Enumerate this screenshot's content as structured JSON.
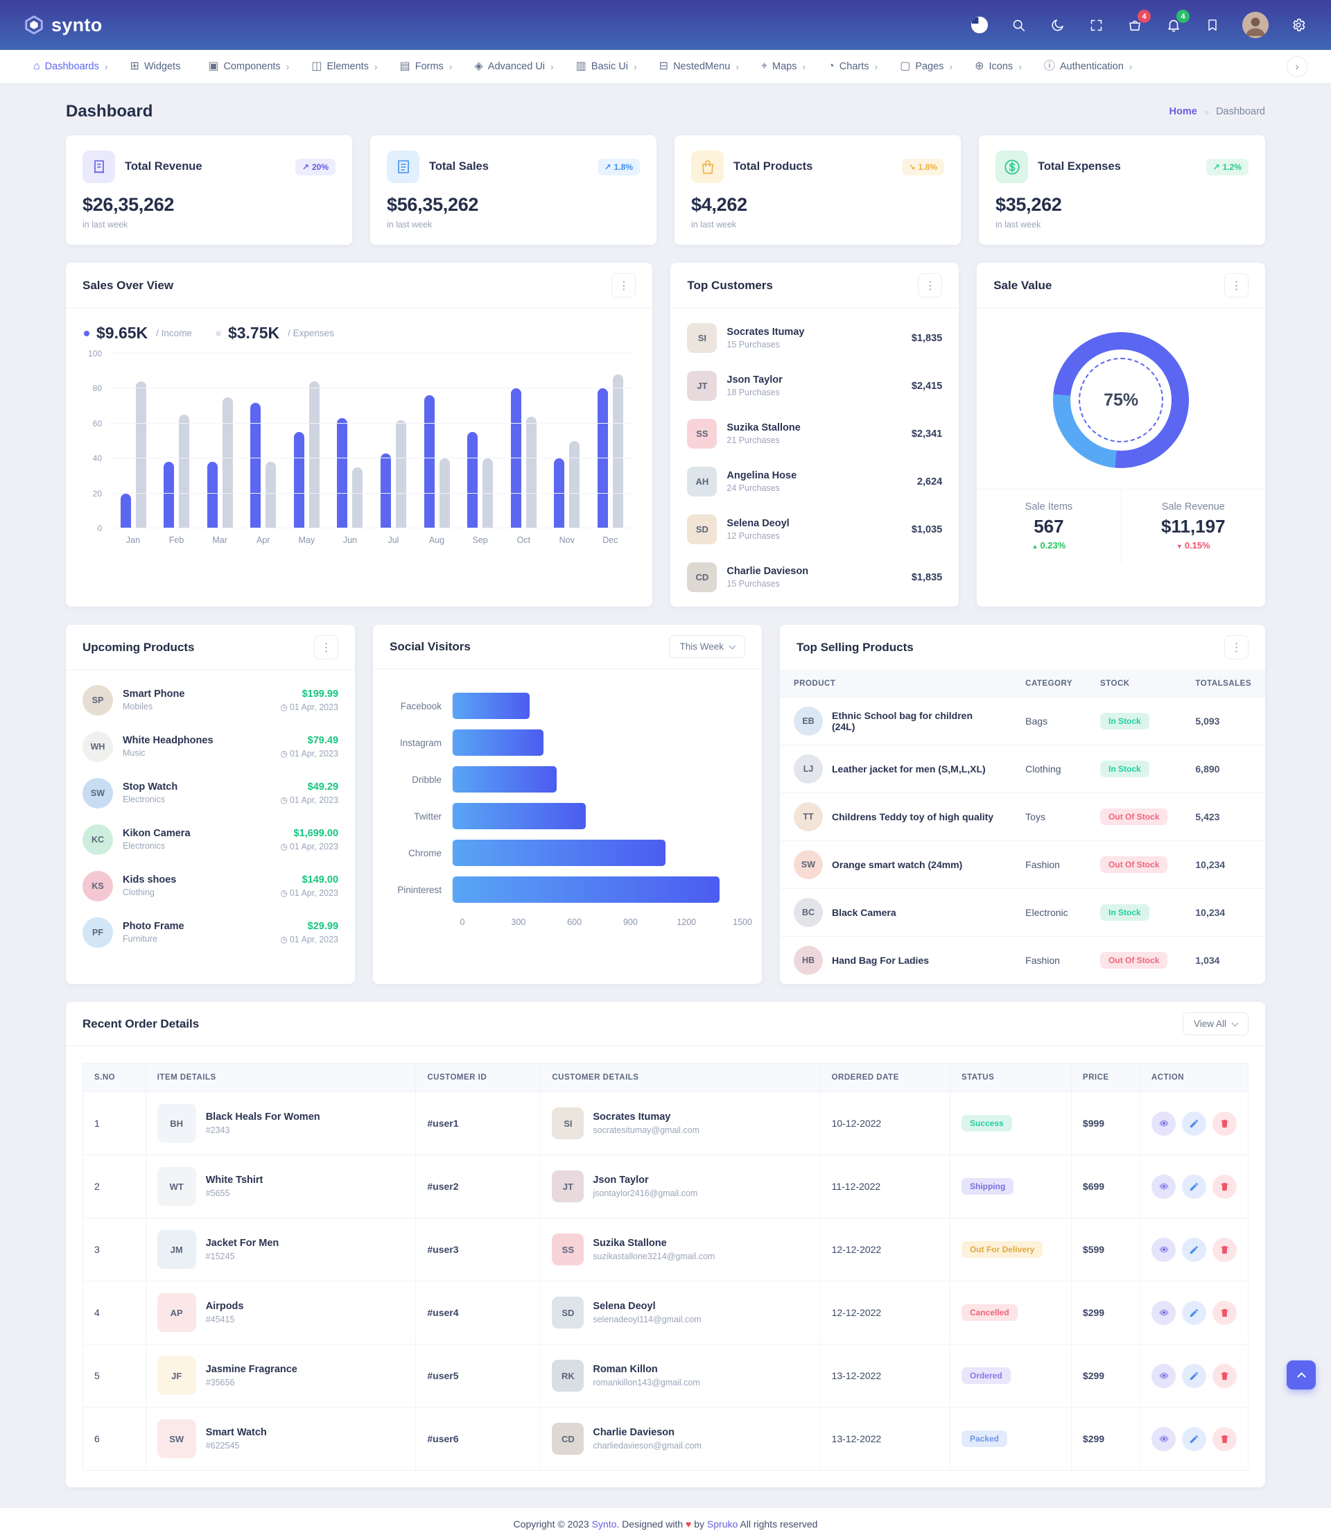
{
  "header": {
    "brand": "synto",
    "cart_badge": "4",
    "bell_badge": "4"
  },
  "nav": {
    "items": [
      {
        "label": "Dashboards",
        "glyph": "⌂",
        "caret": "›",
        "state": "active"
      },
      {
        "label": "Widgets",
        "glyph": "⊞",
        "caret": "",
        "state": ""
      },
      {
        "label": "Components",
        "glyph": "▣",
        "caret": "›",
        "state": ""
      },
      {
        "label": "Elements",
        "glyph": "◫",
        "caret": "›",
        "state": ""
      },
      {
        "label": "Forms",
        "glyph": "▤",
        "caret": "›",
        "state": ""
      },
      {
        "label": "Advanced Ui",
        "glyph": "◈",
        "caret": "›",
        "state": ""
      },
      {
        "label": "Basic Ui",
        "glyph": "▥",
        "caret": "›",
        "state": ""
      },
      {
        "label": "NestedMenu",
        "glyph": "⊟",
        "caret": "›",
        "state": ""
      },
      {
        "label": "Maps",
        "glyph": "⌖",
        "caret": "›",
        "state": ""
      },
      {
        "label": "Charts",
        "glyph": "◔",
        "caret": "›",
        "state": ""
      },
      {
        "label": "Pages",
        "glyph": "▢",
        "caret": "›",
        "state": ""
      },
      {
        "label": "Icons",
        "glyph": "⊕",
        "caret": "›",
        "state": ""
      },
      {
        "label": "Authentication",
        "glyph": "ⓘ",
        "caret": "›",
        "state": ""
      }
    ]
  },
  "breadcrumb": {
    "page_title": "Dashboard",
    "home": "Home",
    "current": "Dashboard"
  },
  "stat_cards": [
    {
      "title": "Total Revenue",
      "value": "$26,35,262",
      "badge_arrow": "↗",
      "badge": "20%",
      "sub": "in last week",
      "theme": "t-purple"
    },
    {
      "title": "Total Sales",
      "value": "$56,35,262",
      "badge_arrow": "↗",
      "badge": "1.8%",
      "sub": "in last week",
      "theme": "t-blue"
    },
    {
      "title": "Total Products",
      "value": "$4,262",
      "badge_arrow": "↘",
      "badge": "1.8%",
      "sub": "in last week",
      "theme": "t-orange"
    },
    {
      "title": "Total Expenses",
      "value": "$35,262",
      "badge_arrow": "↗",
      "badge": "1.2%",
      "sub": "in last week",
      "theme": "t-green"
    }
  ],
  "sales_overview": {
    "title": "Sales Over View",
    "legend": [
      {
        "value": "$9.65K",
        "label": "/ Income"
      },
      {
        "value": "$3.75K",
        "label": "/ Expenses"
      }
    ]
  },
  "top_customers": {
    "title": "Top Customers",
    "items": [
      {
        "name": "Socrates Itumay",
        "purchases": "15 Purchases",
        "amount": "$1,835",
        "initials": "SI",
        "bg": "#ece5de"
      },
      {
        "name": "Json Taylor",
        "purchases": "18 Purchases",
        "amount": "$2,415",
        "initials": "JT",
        "bg": "#e8d9dd"
      },
      {
        "name": "Suzika Stallone",
        "purchases": "21 Purchases",
        "amount": "$2,341",
        "initials": "SS",
        "bg": "#f8d4d9"
      },
      {
        "name": "Angelina Hose",
        "purchases": "24 Purchases",
        "amount": "2,624",
        "initials": "AH",
        "bg": "#dde5ea"
      },
      {
        "name": "Selena Deoyl",
        "purchases": "12 Purchases",
        "amount": "$1,035",
        "initials": "SD",
        "bg": "#f1e4d4"
      },
      {
        "name": "Charlie Davieson",
        "purchases": "15 Purchases",
        "amount": "$1,835",
        "initials": "CD",
        "bg": "#ded8d2"
      }
    ]
  },
  "sale_value": {
    "title": "Sale Value",
    "center_label": "75%",
    "items_label": "Sale Items",
    "items_value": "567",
    "items_change": "0.23%",
    "revenue_label": "Sale Revenue",
    "revenue_value": "$11,197",
    "revenue_change": "0.15%"
  },
  "upcoming_products": {
    "title": "Upcoming Products",
    "items": [
      {
        "name": "Smart Phone",
        "category": "Mobiles",
        "price": "$199.99",
        "date": "01 Apr, 2023",
        "initials": "SP",
        "bg": "#e6ddd3"
      },
      {
        "name": "White Headphones",
        "category": "Music",
        "price": "$79.49",
        "date": "01 Apr, 2023",
        "initials": "WH",
        "bg": "#f0f0ee"
      },
      {
        "name": "Stop Watch",
        "category": "Electronics",
        "price": "$49.29",
        "date": "01 Apr, 2023",
        "initials": "SW",
        "bg": "#c8ddf3"
      },
      {
        "name": "Kikon Camera",
        "category": "Electronics",
        "price": "$1,699.00",
        "date": "01 Apr, 2023",
        "initials": "KC",
        "bg": "#cdeede"
      },
      {
        "name": "Kids shoes",
        "category": "Clothing",
        "price": "$149.00",
        "date": "01 Apr, 2023",
        "initials": "KS",
        "bg": "#f3c8d3"
      },
      {
        "name": "Photo Frame",
        "category": "Furniture",
        "price": "$29.99",
        "date": "01 Apr, 2023",
        "initials": "PF",
        "bg": "#d3e6f5"
      }
    ]
  },
  "social_visitors": {
    "title": "Social Visitors",
    "dropdown": "This Week"
  },
  "top_selling": {
    "title": "Top Selling Products",
    "columns": {
      "product": "Product",
      "category": "Category",
      "stock": "Stock",
      "sales": "TotalSales"
    },
    "rows": [
      {
        "name": "Ethnic School bag for children (24L)",
        "category": "Bags",
        "stock_label": "In Stock",
        "stock_class": "stock-in",
        "sales": "5,093",
        "initials": "EB",
        "bg": "#dbe7f2"
      },
      {
        "name": "Leather jacket for men (S,M,L,XL)",
        "category": "Clothing",
        "stock_label": "In Stock",
        "stock_class": "stock-in",
        "sales": "6,890",
        "initials": "LJ",
        "bg": "#e3e6ec"
      },
      {
        "name": "Childrens Teddy toy of high quality",
        "category": "Toys",
        "stock_label": "Out Of Stock",
        "stock_class": "stock-out",
        "sales": "5,423",
        "initials": "TT",
        "bg": "#f3e4d8"
      },
      {
        "name": "Orange smart watch (24mm)",
        "category": "Fashion",
        "stock_label": "Out Of Stock",
        "stock_class": "stock-out",
        "sales": "10,234",
        "initials": "SW",
        "bg": "#f8dcd4"
      },
      {
        "name": "Black Camera",
        "category": "Electronic",
        "stock_label": "In Stock",
        "stock_class": "stock-in",
        "sales": "10,234",
        "initials": "BC",
        "bg": "#e2e4e9"
      },
      {
        "name": "Hand Bag For Ladies",
        "category": "Fashion",
        "stock_label": "Out Of Stock",
        "stock_class": "stock-out",
        "sales": "1,034",
        "initials": "HB",
        "bg": "#eed7da"
      }
    ]
  },
  "recent_orders": {
    "title": "Recent Order Details",
    "view_all": "View All",
    "columns": {
      "sno": "S.No",
      "item": "Item Details",
      "cid": "Customer Id",
      "cdet": "Customer Details",
      "date": "Ordered Date",
      "status": "Status",
      "price": "Price",
      "action": "Action"
    },
    "rows": [
      {
        "sno": "1",
        "item_name": "Black Heals For Women",
        "item_id": "#2343",
        "thumb": "BH",
        "thumb_bg": "#f1f4f8",
        "uid": "#user1",
        "cust": "Socrates Itumay",
        "email": "socratesitumay@gmail.com",
        "avatar": "SI",
        "avatar_bg": "#ece5de",
        "date": "10-12-2022",
        "status_label": "Success",
        "status_class": "st-success",
        "price": "$999"
      },
      {
        "sno": "2",
        "item_name": "White Tshirt",
        "item_id": "#5655",
        "thumb": "WT",
        "thumb_bg": "#f3f4f6",
        "uid": "#user2",
        "cust": "Json Taylor",
        "email": "jsontaylor2416@gmail.com",
        "avatar": "JT",
        "avatar_bg": "#e8d9dd",
        "date": "11-12-2022",
        "status_label": "Shipping",
        "status_class": "st-shipping",
        "price": "$699"
      },
      {
        "sno": "3",
        "item_name": "Jacket For Men",
        "item_id": "#15245",
        "thumb": "JM",
        "thumb_bg": "#e9f1f7",
        "uid": "#user3",
        "cust": "Suzika Stallone",
        "email": "suzikastallone3214@gmail.com",
        "avatar": "SS",
        "avatar_bg": "#f8d4d9",
        "date": "12-12-2022",
        "status_label": "Out For Delivery",
        "status_class": "st-delivery",
        "price": "$599"
      },
      {
        "sno": "4",
        "item_name": "Airpods",
        "item_id": "#45415",
        "thumb": "AP",
        "thumb_bg": "#fbe7e8",
        "uid": "#user4",
        "cust": "Selena Deoyl",
        "email": "selenadeoyl114@gmail.com",
        "avatar": "SD",
        "avatar_bg": "#dde5ea",
        "date": "12-12-2022",
        "status_label": "Cancelled",
        "status_class": "st-cancelled",
        "price": "$299"
      },
      {
        "sno": "5",
        "item_name": "Jasmine Fragrance",
        "item_id": "#35656",
        "thumb": "JF",
        "thumb_bg": "#fdf4e3",
        "uid": "#user5",
        "cust": "Roman Killon",
        "email": "romankillon143@gmail.com",
        "avatar": "RK",
        "avatar_bg": "#d9dee5",
        "date": "13-12-2022",
        "status_label": "Ordered",
        "status_class": "st-ordered",
        "price": "$299"
      },
      {
        "sno": "6",
        "item_name": "Smart Watch",
        "item_id": "#622545",
        "thumb": "SW",
        "thumb_bg": "#fbe9e9",
        "uid": "#user6",
        "cust": "Charlie Davieson",
        "email": "charliedavieson@gmail.com",
        "avatar": "CD",
        "avatar_bg": "#ded8d2",
        "date": "13-12-2022",
        "status_label": "Packed",
        "status_class": "st-packed",
        "price": "$299"
      }
    ]
  },
  "footer": {
    "pre": "Copyright © 2023 ",
    "brand": "Synto",
    "mid": ". Designed with ",
    "heart": "♥",
    "by": " by ",
    "agency": "Spruko",
    "post": " All rights reserved"
  },
  "chart_data": [
    {
      "type": "bar",
      "title": "Sales Over View",
      "categories": [
        "Jan",
        "Feb",
        "Mar",
        "Apr",
        "May",
        "Jun",
        "Jul",
        "Aug",
        "Sep",
        "Oct",
        "Nov",
        "Dec"
      ],
      "series": [
        {
          "name": "Income",
          "values": [
            20,
            38,
            38,
            72,
            55,
            63,
            43,
            76,
            55,
            80,
            40,
            80
          ],
          "color": "#5b67f1"
        },
        {
          "name": "Expenses",
          "values": [
            84,
            65,
            75,
            38,
            84,
            35,
            62,
            40,
            40,
            64,
            50,
            88
          ],
          "color": "#ced4e0"
        }
      ],
      "ylim": [
        0,
        100
      ],
      "yticks": [
        0,
        20,
        40,
        60,
        80,
        100
      ],
      "grid": true,
      "legend_position": "top-left"
    },
    {
      "type": "bar",
      "orientation": "horizontal",
      "title": "Social Visitors",
      "categories": [
        "Facebook",
        "Instagram",
        "Dribble",
        "Twitter",
        "Chrome",
        "Pininterest"
      ],
      "values": [
        400,
        470,
        540,
        690,
        1100,
        1380
      ],
      "xlim": [
        0,
        1500
      ],
      "xticks": [
        0,
        300,
        600,
        900,
        1200,
        1500
      ],
      "bar_gradient": [
        "#59a5f5",
        "#4c5cf0"
      ]
    },
    {
      "type": "donut",
      "title": "Sale Value",
      "center_label": "75%",
      "segments": [
        {
          "name": "Primary",
          "value": 75,
          "color": "#5b67f1"
        },
        {
          "name": "Secondary",
          "value": 25,
          "color": "#57a8f5"
        }
      ],
      "rotation": 275
    }
  ]
}
